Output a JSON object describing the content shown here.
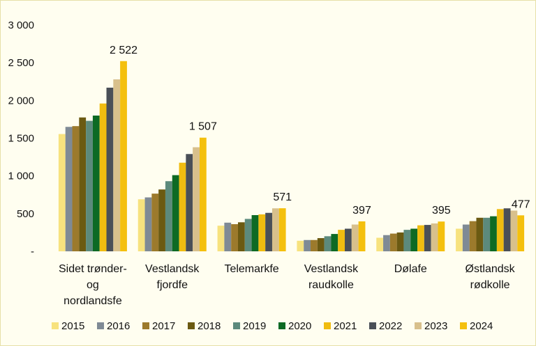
{
  "chart_data": {
    "type": "bar",
    "title": "",
    "xlabel": "",
    "ylabel": "",
    "ylim": [
      0,
      3000
    ],
    "yticks": [
      0,
      500,
      1000,
      1500,
      2000,
      2500,
      3000
    ],
    "ytick_labels": [
      "-",
      "500",
      "1 000",
      "1 500",
      "2 000",
      "2 500",
      "3 000"
    ],
    "grid": false,
    "legend_position": "bottom",
    "categories": [
      [
        "Sidet trønder-",
        "og",
        "nordlandsfe"
      ],
      [
        "Vestlandsk",
        "fjordfe"
      ],
      [
        "Telemarkfe"
      ],
      [
        "Vestlandsk",
        "raudkolle"
      ],
      [
        "Dølafe"
      ],
      [
        "Østlandsk",
        "rødkolle"
      ]
    ],
    "series": [
      {
        "name": "2015",
        "color": "#f7e27e",
        "values": [
          1555,
          690,
          340,
          140,
          180,
          300
        ]
      },
      {
        "name": "2016",
        "color": "#7f8a95",
        "values": [
          1650,
          715,
          380,
          150,
          215,
          355
        ]
      },
      {
        "name": "2017",
        "color": "#9c7a2c",
        "values": [
          1660,
          765,
          360,
          150,
          235,
          400
        ]
      },
      {
        "name": "2018",
        "color": "#6b5a12",
        "values": [
          1775,
          820,
          385,
          175,
          250,
          445
        ]
      },
      {
        "name": "2019",
        "color": "#5c8a7c",
        "values": [
          1730,
          930,
          430,
          200,
          285,
          445
        ]
      },
      {
        "name": "2020",
        "color": "#0d6a24",
        "values": [
          1800,
          1010,
          480,
          230,
          300,
          465
        ]
      },
      {
        "name": "2021",
        "color": "#f0bc10",
        "values": [
          1960,
          1175,
          490,
          285,
          345,
          560
        ]
      },
      {
        "name": "2022",
        "color": "#4a4f57",
        "values": [
          2170,
          1290,
          510,
          300,
          350,
          570
        ]
      },
      {
        "name": "2023",
        "color": "#d8c08c",
        "values": [
          2280,
          1380,
          570,
          355,
          370,
          540
        ]
      },
      {
        "name": "2024",
        "color": "#f4c00e",
        "values": [
          2522,
          1507,
          571,
          397,
          395,
          477
        ]
      }
    ],
    "data_labels": [
      "2 522",
      "1 507",
      "571",
      "397",
      "395",
      "477"
    ]
  }
}
